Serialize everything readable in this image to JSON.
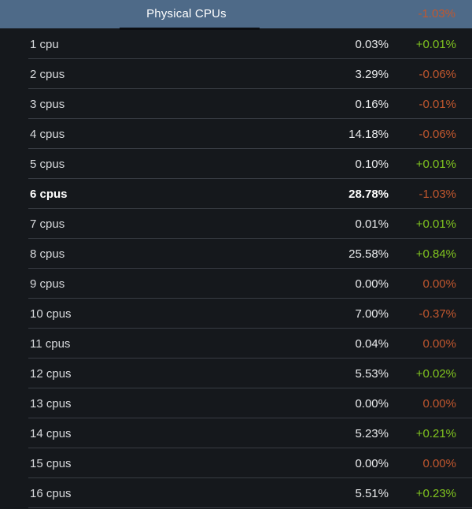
{
  "header": {
    "title": "Physical CPUs",
    "change": "-1.03%",
    "change_trend": "down"
  },
  "colors": {
    "header_bg": "#4e6a88",
    "body_bg": "#15181c",
    "divider": "#383c43",
    "increase_green": "#80c41f",
    "decrease_orange": "#c1572e"
  },
  "columns": [
    "category",
    "share_percent",
    "change_percent"
  ],
  "rows": [
    {
      "label": "1 cpu",
      "value": "0.03%",
      "change": "+0.01%",
      "trend": "up",
      "highlight": false
    },
    {
      "label": "2 cpus",
      "value": "3.29%",
      "change": "-0.06%",
      "trend": "down",
      "highlight": false
    },
    {
      "label": "3 cpus",
      "value": "0.16%",
      "change": "-0.01%",
      "trend": "down",
      "highlight": false
    },
    {
      "label": "4 cpus",
      "value": "14.18%",
      "change": "-0.06%",
      "trend": "down",
      "highlight": false
    },
    {
      "label": "5 cpus",
      "value": "0.10%",
      "change": "+0.01%",
      "trend": "up",
      "highlight": false
    },
    {
      "label": "6 cpus",
      "value": "28.78%",
      "change": "-1.03%",
      "trend": "down",
      "highlight": true
    },
    {
      "label": "7 cpus",
      "value": "0.01%",
      "change": "+0.01%",
      "trend": "up",
      "highlight": false
    },
    {
      "label": "8 cpus",
      "value": "25.58%",
      "change": "+0.84%",
      "trend": "up",
      "highlight": false
    },
    {
      "label": "9 cpus",
      "value": "0.00%",
      "change": "0.00%",
      "trend": "flat",
      "highlight": false
    },
    {
      "label": "10 cpus",
      "value": "7.00%",
      "change": "-0.37%",
      "trend": "down",
      "highlight": false
    },
    {
      "label": "11 cpus",
      "value": "0.04%",
      "change": "0.00%",
      "trend": "flat",
      "highlight": false
    },
    {
      "label": "12 cpus",
      "value": "5.53%",
      "change": "+0.02%",
      "trend": "up",
      "highlight": false
    },
    {
      "label": "13 cpus",
      "value": "0.00%",
      "change": "0.00%",
      "trend": "flat",
      "highlight": false
    },
    {
      "label": "14 cpus",
      "value": "5.23%",
      "change": "+0.21%",
      "trend": "up",
      "highlight": false
    },
    {
      "label": "15 cpus",
      "value": "0.00%",
      "change": "0.00%",
      "trend": "flat",
      "highlight": false
    },
    {
      "label": "16 cpus",
      "value": "5.51%",
      "change": "+0.23%",
      "trend": "up",
      "highlight": false
    }
  ]
}
